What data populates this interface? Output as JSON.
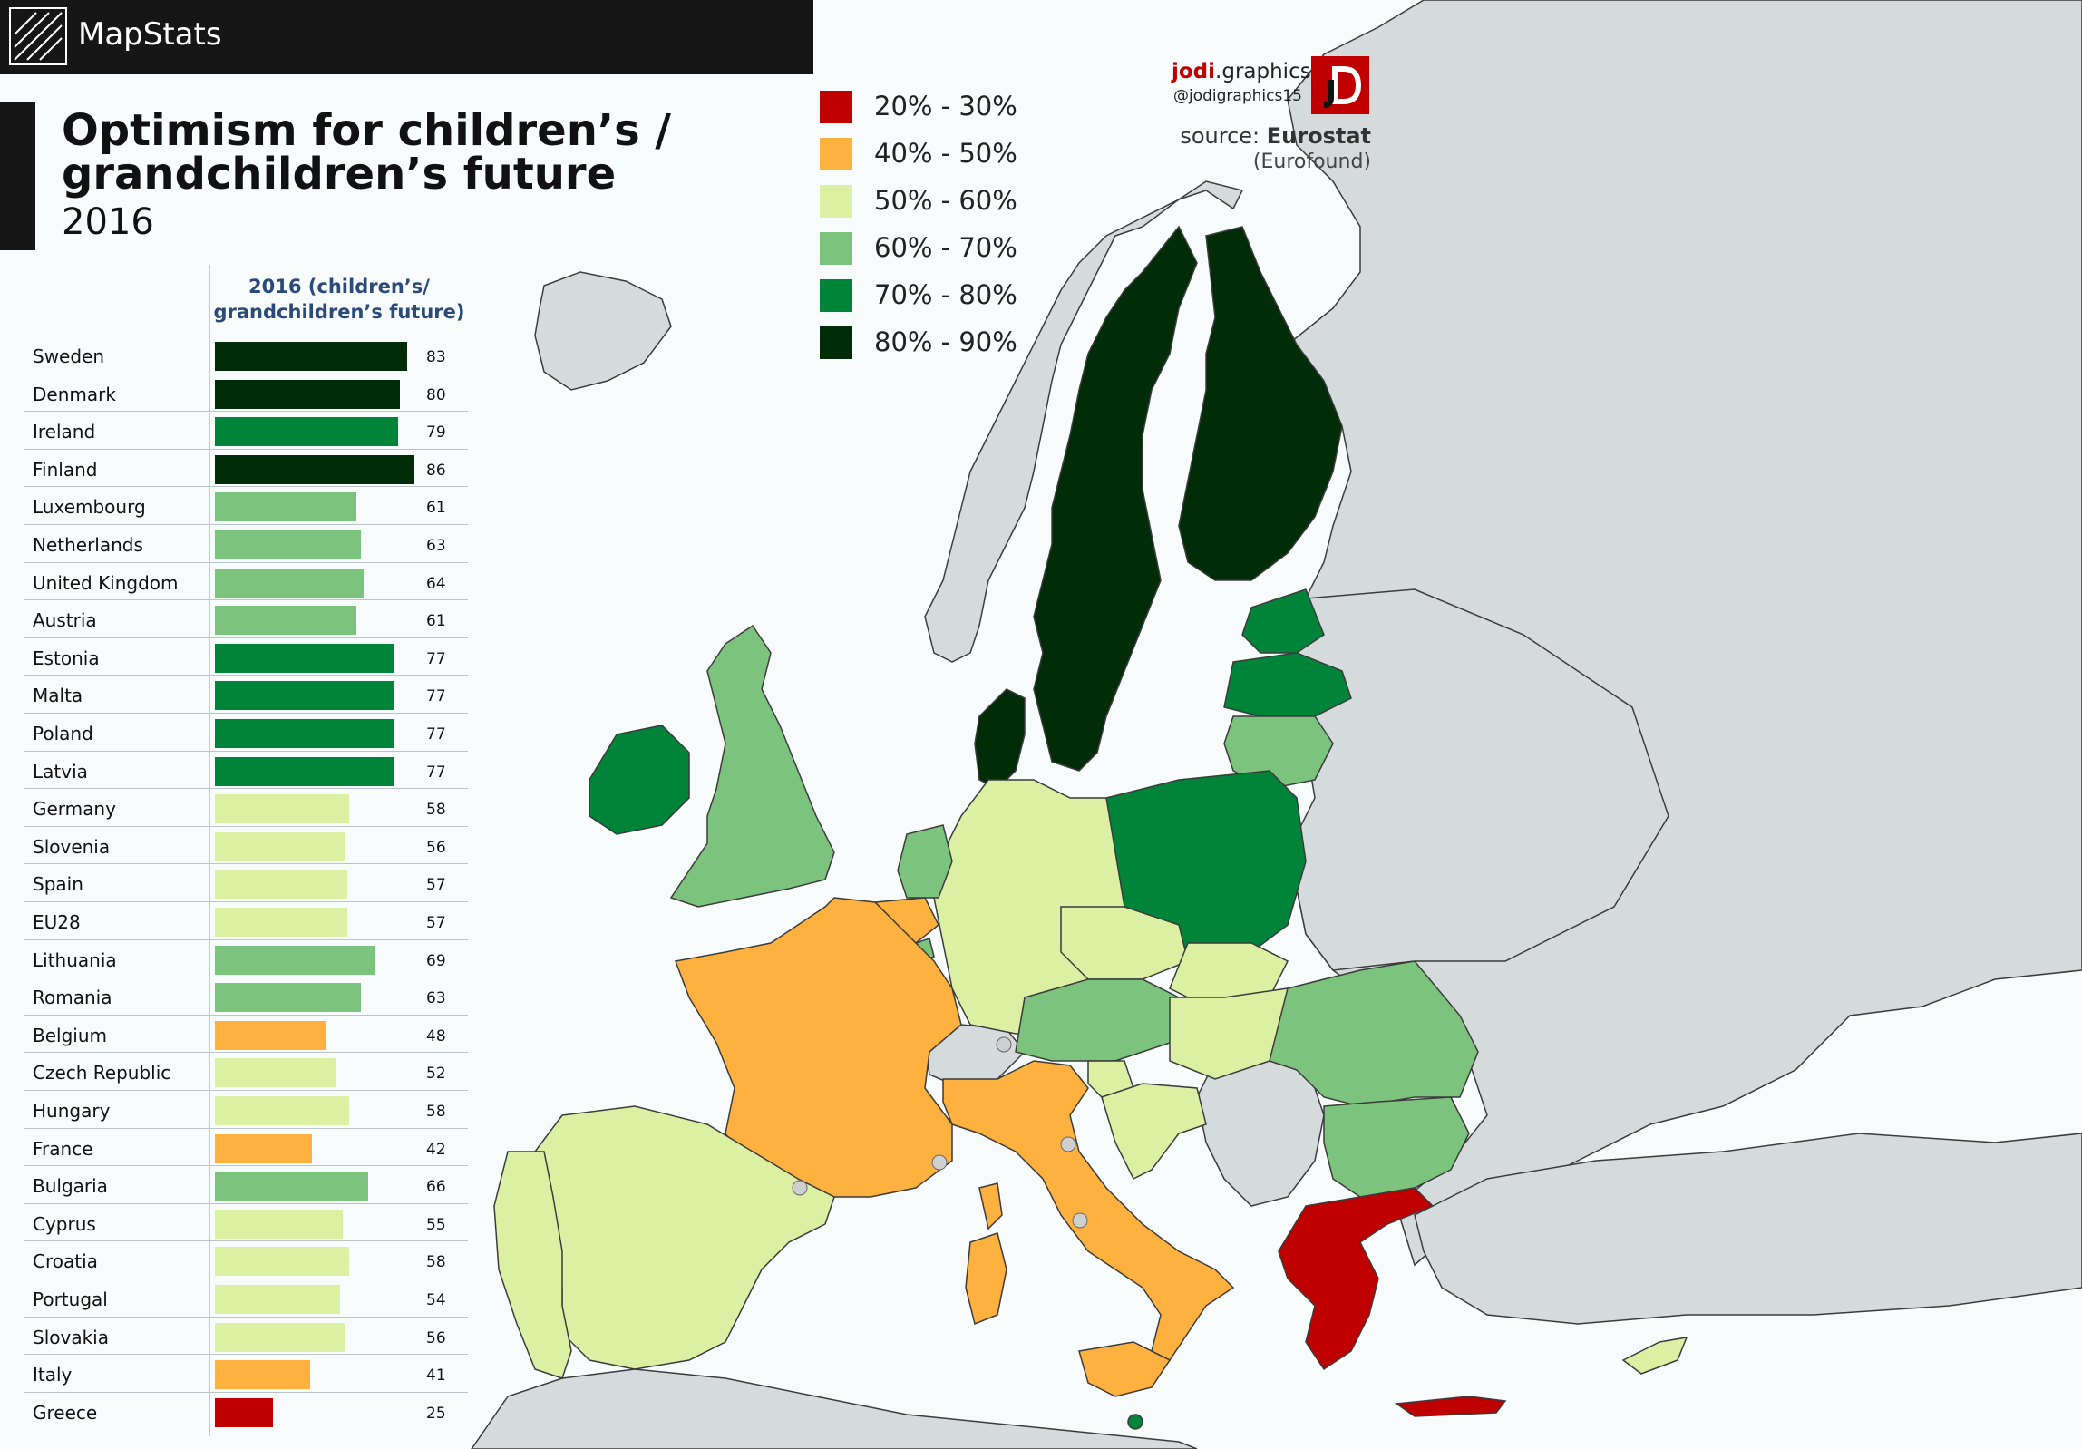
{
  "brand": {
    "name": "MapStats"
  },
  "title": {
    "line1": "Optimism  for children’s /",
    "line2": "grandchildren’s future",
    "year": "2016"
  },
  "legend": {
    "items": [
      {
        "label": "20% - 30%",
        "color": "#c00000"
      },
      {
        "label": "40% - 50%",
        "color": "#ffb13f"
      },
      {
        "label": "50% - 60%",
        "color": "#dcf0a4"
      },
      {
        "label": "60% - 70%",
        "color": "#7cc47e"
      },
      {
        "label": "70% - 80%",
        "color": "#00843a"
      },
      {
        "label": "80% - 90%",
        "color": "#002d08"
      }
    ]
  },
  "credit": {
    "name_bold": "jodi",
    "name_rest": ".graphics",
    "handle": "@jodigraphics15"
  },
  "source": {
    "prefix": "source: ",
    "name": "Eurostat",
    "note": "(Eurofound)"
  },
  "table": {
    "header_line1": "2016 (children’s/",
    "header_line2": "grandchildren’s future)",
    "rows": [
      {
        "country": "Sweden",
        "value": 83,
        "color": "#002d08"
      },
      {
        "country": "Denmark",
        "value": 80,
        "color": "#002d08"
      },
      {
        "country": "Ireland",
        "value": 79,
        "color": "#00843a"
      },
      {
        "country": "Finland",
        "value": 86,
        "color": "#002d08"
      },
      {
        "country": "Luxembourg",
        "value": 61,
        "color": "#7cc47e"
      },
      {
        "country": "Netherlands",
        "value": 63,
        "color": "#7cc47e"
      },
      {
        "country": "United Kingdom",
        "value": 64,
        "color": "#7cc47e"
      },
      {
        "country": "Austria",
        "value": 61,
        "color": "#7cc47e"
      },
      {
        "country": "Estonia",
        "value": 77,
        "color": "#00843a"
      },
      {
        "country": "Malta",
        "value": 77,
        "color": "#00843a"
      },
      {
        "country": "Poland",
        "value": 77,
        "color": "#00843a"
      },
      {
        "country": "Latvia",
        "value": 77,
        "color": "#00843a"
      },
      {
        "country": "Germany",
        "value": 58,
        "color": "#dcf0a4"
      },
      {
        "country": "Slovenia",
        "value": 56,
        "color": "#dcf0a4"
      },
      {
        "country": "Spain",
        "value": 57,
        "color": "#dcf0a4"
      },
      {
        "country": "EU28",
        "value": 57,
        "color": "#dcf0a4"
      },
      {
        "country": "Lithuania",
        "value": 69,
        "color": "#7cc47e"
      },
      {
        "country": "Romania",
        "value": 63,
        "color": "#7cc47e"
      },
      {
        "country": "Belgium",
        "value": 48,
        "color": "#ffb13f"
      },
      {
        "country": "Czech Republic",
        "value": 52,
        "color": "#dcf0a4"
      },
      {
        "country": "Hungary",
        "value": 58,
        "color": "#dcf0a4"
      },
      {
        "country": "France",
        "value": 42,
        "color": "#ffb13f"
      },
      {
        "country": "Bulgaria",
        "value": 66,
        "color": "#7cc47e"
      },
      {
        "country": "Cyprus",
        "value": 55,
        "color": "#dcf0a4"
      },
      {
        "country": "Croatia",
        "value": 58,
        "color": "#dcf0a4"
      },
      {
        "country": "Portugal",
        "value": 54,
        "color": "#dcf0a4"
      },
      {
        "country": "Slovakia",
        "value": 56,
        "color": "#dcf0a4"
      },
      {
        "country": "Italy",
        "value": 41,
        "color": "#ffb13f"
      },
      {
        "country": "Greece",
        "value": 25,
        "color": "#c00000"
      }
    ]
  },
  "map_colors": {
    "sea": "#f7fbfb",
    "non_eu": "#d5dbdd",
    "border": "#3b3b3b"
  },
  "chart_data": {
    "type": "bar",
    "categories": [
      "Sweden",
      "Denmark",
      "Ireland",
      "Finland",
      "Luxembourg",
      "Netherlands",
      "United Kingdom",
      "Austria",
      "Estonia",
      "Malta",
      "Poland",
      "Latvia",
      "Germany",
      "Slovenia",
      "Spain",
      "EU28",
      "Lithuania",
      "Romania",
      "Belgium",
      "Czech Republic",
      "Hungary",
      "France",
      "Bulgaria",
      "Cyprus",
      "Croatia",
      "Portugal",
      "Slovakia",
      "Italy",
      "Greece"
    ],
    "values": [
      83,
      80,
      79,
      86,
      61,
      63,
      64,
      61,
      77,
      77,
      77,
      77,
      58,
      56,
      57,
      57,
      69,
      63,
      48,
      52,
      58,
      42,
      66,
      55,
      58,
      54,
      56,
      41,
      25
    ],
    "xlabel": "",
    "ylabel": "2016 (children’s/ grandchildren’s future)"
  }
}
